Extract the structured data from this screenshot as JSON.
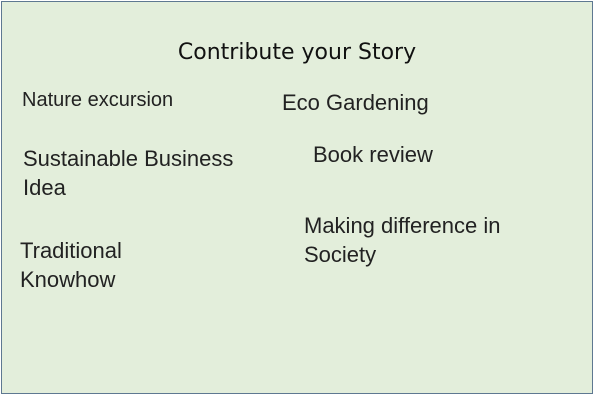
{
  "panel": {
    "title": "Contribute your Story",
    "items": [
      {
        "label": "Nature excursion"
      },
      {
        "label": "Eco Gardening"
      },
      {
        "label": "Sustainable Business Idea"
      },
      {
        "label": "Book review"
      },
      {
        "label": "Traditional Knowhow"
      },
      {
        "label": "Making difference in Society"
      }
    ]
  },
  "colors": {
    "background": "#e3eedb",
    "border": "#5e7891",
    "text": "#222222"
  }
}
